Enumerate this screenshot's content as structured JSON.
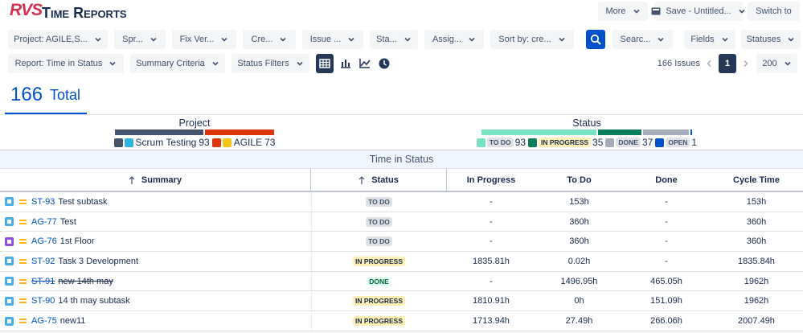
{
  "header": {
    "logo": "RVS",
    "title": "Time Reports",
    "buttons": [
      "More",
      "Save - Untitled...",
      "Switch to"
    ]
  },
  "filters": [
    "Project: AGILE,S...",
    "Spr...",
    "Fix Ver...",
    "Cre...",
    "Issue ...",
    "Sta...",
    "Assig...",
    "Sort by: cre...",
    "Searc...",
    "Fields",
    "Statuses"
  ],
  "toolbar": {
    "report": "Report: Time in Status",
    "summary_criteria": "Summary Criteria",
    "status_filters": "Status Filters",
    "issues_count": "166 Issues",
    "page": "1",
    "page_size": "200"
  },
  "total": {
    "value": 166,
    "label": "Total"
  },
  "project_summary": {
    "title": "Project",
    "items": [
      {
        "name": "Scrum Testing",
        "count": 93,
        "color": "#44546f",
        "avatar_color": "#2fb4e0"
      },
      {
        "name": "AGILE",
        "count": 73,
        "color": "#de350b",
        "avatar_color": "#f5c518"
      }
    ]
  },
  "status_summary": {
    "title": "Status",
    "items": [
      {
        "name": "TO DO",
        "count": 93,
        "color": "#79e2c2",
        "lozenge_bg": "#dfe1e6",
        "lozenge_fg": "#42526e"
      },
      {
        "name": "IN PROGRESS",
        "count": 35,
        "color": "#0a7d5a",
        "lozenge_bg": "#fff0b3",
        "lozenge_fg": "#172b4d"
      },
      {
        "name": "DONE",
        "count": 37,
        "color": "#a5adba",
        "lozenge_bg": "#dfe1e6",
        "lozenge_fg": "#42526e"
      },
      {
        "name": "OPEN",
        "count": 1,
        "color": "#0052cc",
        "lozenge_bg": "#dfe1e6",
        "lozenge_fg": "#42526e"
      }
    ]
  },
  "table": {
    "caption": "Time in Status",
    "columns": [
      "Summary",
      "Status",
      "In Progress",
      "To Do",
      "Done",
      "Cycle Time"
    ],
    "rows": [
      {
        "key": "ST-93",
        "summary": "Test subtask",
        "icon_color": "#4bade8",
        "strikethrough": false,
        "status": "TO DO",
        "status_bg": "#dfe1e6",
        "status_fg": "#42526e",
        "times": [
          "-",
          "153h",
          "-",
          "153h"
        ]
      },
      {
        "key": "AG-77",
        "summary": "Test",
        "icon_color": "#4bade8",
        "strikethrough": false,
        "status": "TO DO",
        "status_bg": "#dfe1e6",
        "status_fg": "#42526e",
        "times": [
          "-",
          "360h",
          "-",
          "360h"
        ]
      },
      {
        "key": "AG-76",
        "summary": "1st Floor",
        "icon_color": "#904ee2",
        "strikethrough": false,
        "status": "TO DO",
        "status_bg": "#dfe1e6",
        "status_fg": "#42526e",
        "times": [
          "-",
          "360h",
          "-",
          "360h"
        ]
      },
      {
        "key": "ST-92",
        "summary": "Task 3 Development",
        "icon_color": "#4bade8",
        "strikethrough": false,
        "status": "IN PROGRESS",
        "status_bg": "#fff0b3",
        "status_fg": "#172b4d",
        "times": [
          "1835.81h",
          "0.02h",
          "-",
          "1835.84h"
        ]
      },
      {
        "key": "ST-91",
        "summary": "new 14th may",
        "icon_color": "#4bade8",
        "strikethrough": true,
        "status": "DONE",
        "status_bg": "#e3fcef",
        "status_fg": "#006644",
        "times": [
          "-",
          "1496.95h",
          "465.05h",
          "1962h"
        ]
      },
      {
        "key": "ST-90",
        "summary": "14 th may subtask",
        "icon_color": "#4bade8",
        "strikethrough": false,
        "status": "IN PROGRESS",
        "status_bg": "#fff0b3",
        "status_fg": "#172b4d",
        "times": [
          "1810.91h",
          "0h",
          "151.09h",
          "1962h"
        ]
      },
      {
        "key": "AG-75",
        "summary": "new11",
        "icon_color": "#4bade8",
        "strikethrough": false,
        "status": "IN PROGRESS",
        "status_bg": "#fff0b3",
        "status_fg": "#172b4d",
        "times": [
          "1713.94h",
          "27.49h",
          "266.06h",
          "2007.49h"
        ]
      }
    ]
  }
}
